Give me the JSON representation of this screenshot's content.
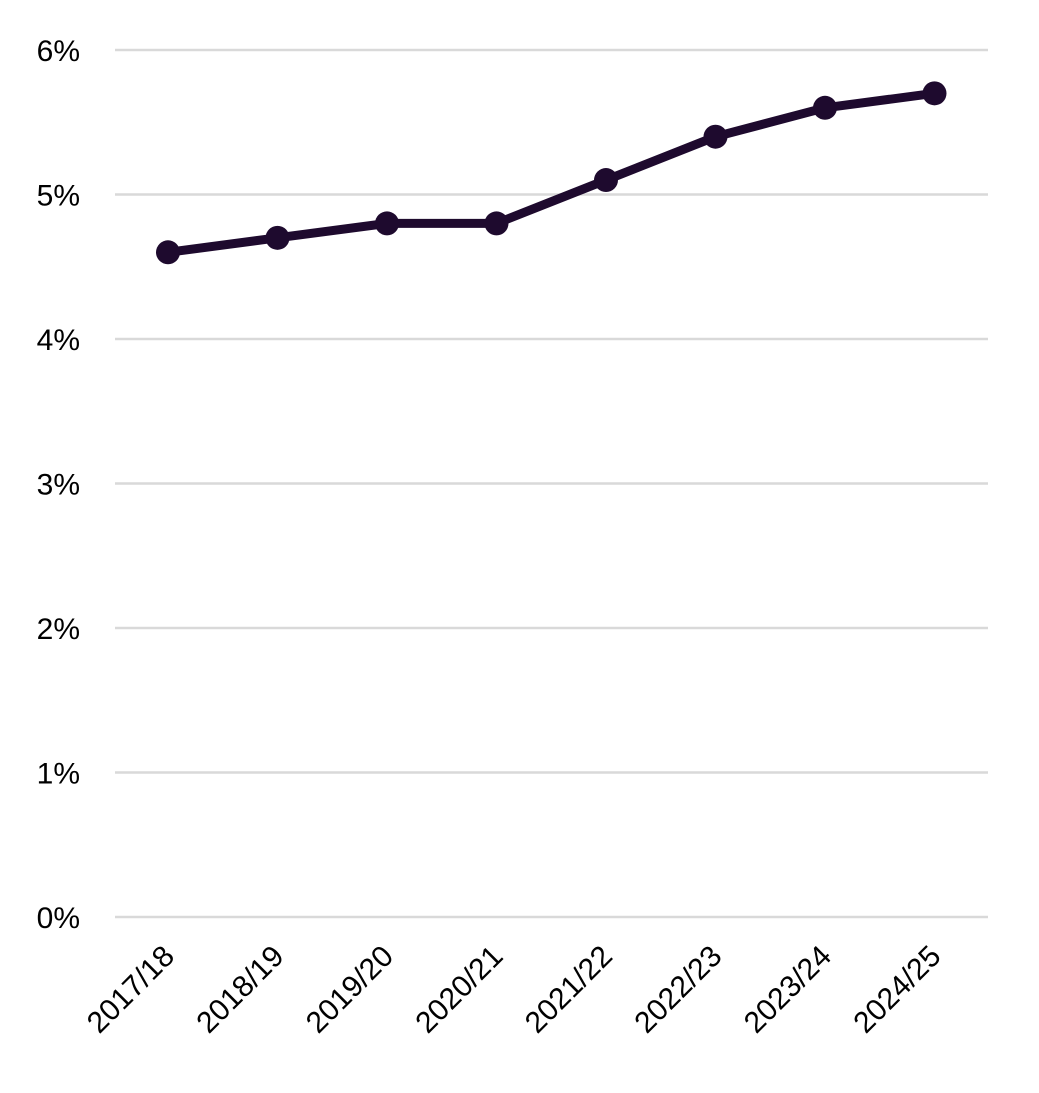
{
  "chart_data": {
    "type": "line",
    "title": "",
    "xlabel": "",
    "ylabel": "",
    "categories": [
      "2017/18",
      "2018/19",
      "2019/20",
      "2020/21",
      "2021/22",
      "2022/23",
      "2023/24",
      "2024/25"
    ],
    "series": [
      {
        "name": "",
        "values": [
          4.6,
          4.7,
          4.8,
          4.8,
          5.1,
          5.4,
          5.6,
          5.7
        ],
        "color": "#1e0a2e"
      }
    ],
    "ylim": [
      0,
      6
    ],
    "yticks": [
      0,
      1,
      2,
      3,
      4,
      5,
      6
    ],
    "ytick_labels": [
      "0%",
      "1%",
      "2%",
      "3%",
      "4%",
      "5%",
      "6%"
    ],
    "grid": true,
    "legend": "none",
    "grid_color": "#d9d9d9"
  }
}
